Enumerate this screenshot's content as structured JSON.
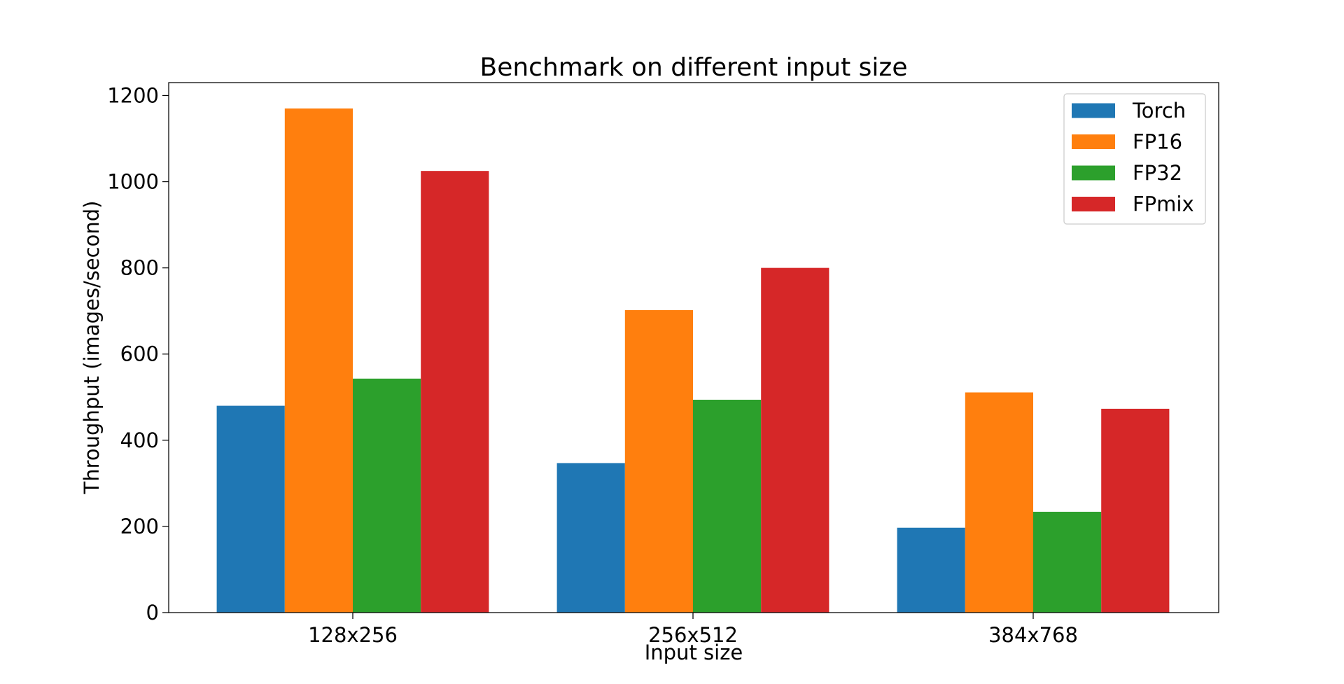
{
  "chart_data": {
    "type": "bar",
    "title": "Benchmark on different input size",
    "xlabel": "Input size",
    "ylabel": "Throughput (images/second)",
    "categories": [
      "128x256",
      "256x512",
      "384x768"
    ],
    "series": [
      {
        "name": "Torch",
        "color": "#1f77b4",
        "values": [
          480,
          347,
          197
        ]
      },
      {
        "name": "FP16",
        "color": "#ff7f0e",
        "values": [
          1170,
          702,
          511
        ]
      },
      {
        "name": "FP32",
        "color": "#2ca02c",
        "values": [
          543,
          494,
          234
        ]
      },
      {
        "name": "FPmix",
        "color": "#d62728",
        "values": [
          1025,
          800,
          473
        ]
      }
    ],
    "ylim": [
      0,
      1230
    ],
    "yticks": [
      0,
      200,
      400,
      600,
      800,
      1000,
      1200
    ],
    "grid": false,
    "legend_position": "top-right"
  }
}
